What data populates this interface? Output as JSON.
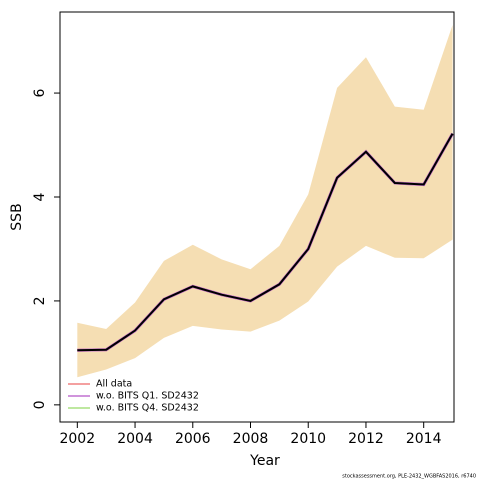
{
  "chart_data": {
    "type": "line",
    "xlabel": "Year",
    "ylabel": "SSB",
    "x": [
      2002,
      2003,
      2004,
      2005,
      2006,
      2007,
      2008,
      2009,
      2010,
      2011,
      2012,
      2013,
      2014,
      2015
    ],
    "band": {
      "color": "#f5deb3",
      "upper": [
        1.58,
        1.46,
        1.97,
        2.77,
        3.08,
        2.8,
        2.61,
        3.06,
        4.05,
        6.1,
        6.69,
        5.74,
        5.68,
        7.31
      ],
      "lower": [
        0.53,
        0.68,
        0.9,
        1.29,
        1.52,
        1.45,
        1.41,
        1.62,
        1.99,
        2.66,
        3.06,
        2.83,
        2.82,
        3.18
      ]
    },
    "series": [
      {
        "name": "All data",
        "color": "#f08080",
        "values": [
          1.05,
          1.06,
          1.43,
          2.03,
          2.28,
          2.12,
          2.0,
          2.32,
          3.0,
          4.37,
          4.87,
          4.27,
          4.24,
          5.22
        ]
      },
      {
        "name": "w.o. BITS Q1. SD2432",
        "color": "#c070d0",
        "values": [
          1.05,
          1.06,
          1.43,
          2.03,
          2.28,
          2.12,
          2.0,
          2.32,
          3.0,
          4.37,
          4.87,
          4.27,
          4.24,
          5.22
        ]
      },
      {
        "name": "w.o. BITS Q4. SD2432",
        "color": "#a8e080",
        "values": [
          1.05,
          1.06,
          1.43,
          2.03,
          2.28,
          2.12,
          2.0,
          2.32,
          3.0,
          4.37,
          4.87,
          4.27,
          4.24,
          5.22
        ]
      }
    ],
    "xlim": [
      2001.4,
      2015.05
    ],
    "ylim": [
      -0.33,
      7.56
    ],
    "xticks": [
      2002,
      2004,
      2006,
      2008,
      2010,
      2012,
      2014
    ],
    "yticks": [
      0,
      2,
      4,
      6
    ],
    "legend": "bottom-left",
    "footnote": "stockassessment.org, PLE-2432_WGBFAS2016, r6740"
  }
}
